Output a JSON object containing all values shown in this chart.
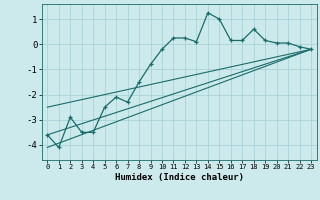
{
  "title": "",
  "xlabel": "Humidex (Indice chaleur)",
  "bg_color": "#cceaec",
  "grid_color": "#aad4d6",
  "line_color": "#1a6b6b",
  "xlim": [
    -0.5,
    23.5
  ],
  "ylim": [
    -4.6,
    1.6
  ],
  "xticks": [
    0,
    1,
    2,
    3,
    4,
    5,
    6,
    7,
    8,
    9,
    10,
    11,
    12,
    13,
    14,
    15,
    16,
    17,
    18,
    19,
    20,
    21,
    22,
    23
  ],
  "yticks": [
    -4,
    -3,
    -2,
    -1,
    0,
    1
  ],
  "line1_x": [
    0,
    1,
    2,
    3,
    4,
    5,
    6,
    7,
    8,
    9,
    10,
    11,
    12,
    13,
    14,
    15,
    16,
    17,
    18,
    19,
    20,
    21,
    22,
    23
  ],
  "line1_y": [
    -3.6,
    -4.1,
    -2.9,
    -3.5,
    -3.5,
    -2.5,
    -2.1,
    -2.3,
    -1.5,
    -0.8,
    -0.2,
    0.25,
    0.25,
    0.1,
    1.25,
    1.0,
    0.15,
    0.15,
    0.6,
    0.15,
    0.05,
    0.05,
    -0.1,
    -0.2
  ],
  "line2_x": [
    0,
    23
  ],
  "line2_y": [
    -2.5,
    -0.2
  ],
  "line3_x": [
    0,
    23
  ],
  "line3_y": [
    -3.6,
    -0.2
  ],
  "line4_x": [
    0,
    23
  ],
  "line4_y": [
    -4.1,
    -0.2
  ]
}
